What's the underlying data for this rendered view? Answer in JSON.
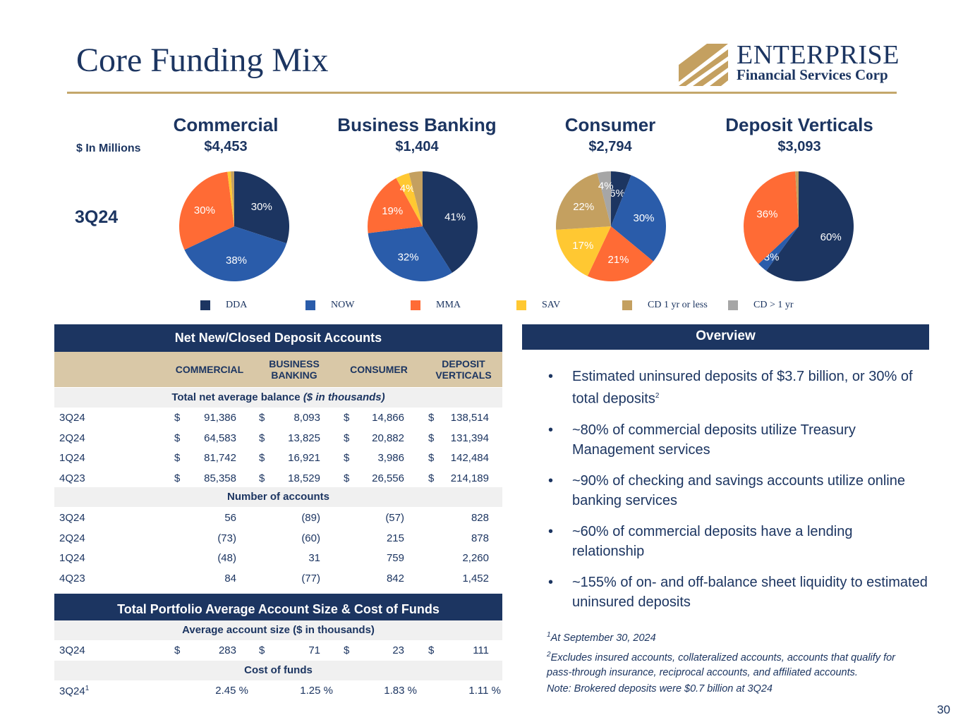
{
  "page": {
    "title": "Core Funding Mix",
    "units": "$ In Millions",
    "period": "3Q24",
    "page_number": "30"
  },
  "logo": {
    "name": "ENTERPRISE",
    "sub": "Financial Services Corp",
    "registered": "®"
  },
  "segments": [
    {
      "name": "Commercial",
      "total": "$4,453"
    },
    {
      "name": "Business Banking",
      "total": "$1,404"
    },
    {
      "name": "Consumer",
      "total": "$2,794"
    },
    {
      "name": "Deposit Verticals",
      "total": "$3,093"
    }
  ],
  "legend": [
    {
      "label": "DDA",
      "color": "#1c3561"
    },
    {
      "label": "NOW",
      "color": "#2a5caa"
    },
    {
      "label": "MMA",
      "color": "#ff6b35"
    },
    {
      "label": "SAV",
      "color": "#ffc832"
    },
    {
      "label": "CD 1 yr or less",
      "color": "#c4a060"
    },
    {
      "label": "CD > 1 yr",
      "color": "#a6a6a6"
    }
  ],
  "chart_data": [
    {
      "type": "pie",
      "title": "Commercial",
      "categories": [
        "DDA",
        "NOW",
        "MMA",
        "SAV",
        "CD 1 yr or less",
        "CD > 1 yr"
      ],
      "values": [
        30,
        38,
        30,
        1,
        1,
        0
      ],
      "labels": [
        "30%",
        "38%",
        "30%",
        "",
        "",
        ""
      ]
    },
    {
      "type": "pie",
      "title": "Business Banking",
      "categories": [
        "DDA",
        "NOW",
        "MMA",
        "SAV",
        "CD 1 yr or less",
        "CD > 1 yr"
      ],
      "values": [
        41,
        32,
        19,
        4,
        4,
        0
      ],
      "labels": [
        "41%",
        "32%",
        "19%",
        "4%",
        "",
        ""
      ]
    },
    {
      "type": "pie",
      "title": "Consumer",
      "categories": [
        "DDA",
        "NOW",
        "MMA",
        "SAV",
        "CD 1 yr or less",
        "CD > 1 yr"
      ],
      "values": [
        6,
        30,
        21,
        17,
        22,
        4
      ],
      "labels": [
        "6%",
        "30%",
        "21%",
        "17%",
        "22%",
        "4%"
      ]
    },
    {
      "type": "pie",
      "title": "Deposit Verticals",
      "categories": [
        "DDA",
        "NOW",
        "MMA",
        "SAV",
        "CD 1 yr or less",
        "CD > 1 yr"
      ],
      "values": [
        60,
        3,
        36,
        0,
        1,
        0
      ],
      "labels": [
        "60%",
        "3%",
        "36%",
        "",
        "",
        ""
      ]
    }
  ],
  "accounts_table": {
    "header": "Net New/Closed Deposit Accounts",
    "columns": [
      "COMMERCIAL",
      "BUSINESS BANKING",
      "CONSUMER",
      "DEPOSIT VERTICALS"
    ],
    "balance_band": "Total net average balance",
    "balance_band_unit": "($ in thousands)",
    "balance_rows": [
      {
        "label": "3Q24",
        "values": [
          "91,386",
          "8,093",
          "14,866",
          "138,514"
        ]
      },
      {
        "label": "2Q24",
        "values": [
          "64,583",
          "13,825",
          "20,882",
          "131,394"
        ]
      },
      {
        "label": "1Q24",
        "values": [
          "81,742",
          "16,921",
          "3,986",
          "142,484"
        ]
      },
      {
        "label": "4Q23",
        "values": [
          "85,358",
          "18,529",
          "26,556",
          "214,189"
        ]
      }
    ],
    "count_band": "Number of accounts",
    "count_rows": [
      {
        "label": "3Q24",
        "values": [
          "56",
          "(89)",
          "(57)",
          "828"
        ]
      },
      {
        "label": "2Q24",
        "values": [
          "(73)",
          "(60)",
          "215",
          "878"
        ]
      },
      {
        "label": "1Q24",
        "values": [
          "(48)",
          "31",
          "759",
          "2,260"
        ]
      },
      {
        "label": "4Q23",
        "values": [
          "84",
          "(77)",
          "842",
          "1,452"
        ]
      }
    ]
  },
  "portfolio_table": {
    "header": "Total Portfolio Average Account Size & Cost of Funds",
    "size_band": "Average account size ($ in thousands)",
    "size_row": {
      "label": "3Q24",
      "values": [
        "283",
        "71",
        "23",
        "111"
      ]
    },
    "cost_band": "Cost of funds",
    "cost_row": {
      "label": "3Q24",
      "sup": "1",
      "values": [
        "2.45 %",
        "1.25 %",
        "1.83 %",
        "1.11 %"
      ]
    }
  },
  "currency_symbol": "$",
  "overview": {
    "header": "Overview",
    "bullet_char": "•",
    "bullets": [
      {
        "text": "Estimated uninsured deposits of $3.7 billion, or 30% of total deposits",
        "sup": "2"
      },
      {
        "text": "~80% of commercial deposits utilize Treasury Management services",
        "sup": ""
      },
      {
        "text": "~90% of checking and savings accounts utilize online banking services",
        "sup": ""
      },
      {
        "text": "~60% of commercial deposits have a lending relationship",
        "sup": ""
      },
      {
        "text": "~155% of on- and off-balance sheet liquidity to estimated uninsured deposits",
        "sup": ""
      }
    ]
  },
  "footnotes": {
    "fn1_sup": "1",
    "fn1": "At September 30, 2024",
    "fn2_sup": "2",
    "fn2": "Excludes insured accounts, collateralized accounts, accounts that qualify for pass-through insurance, reciprocal accounts, and affiliated accounts.",
    "note": "Note: Brokered deposits were $0.7 billion at 3Q24"
  }
}
